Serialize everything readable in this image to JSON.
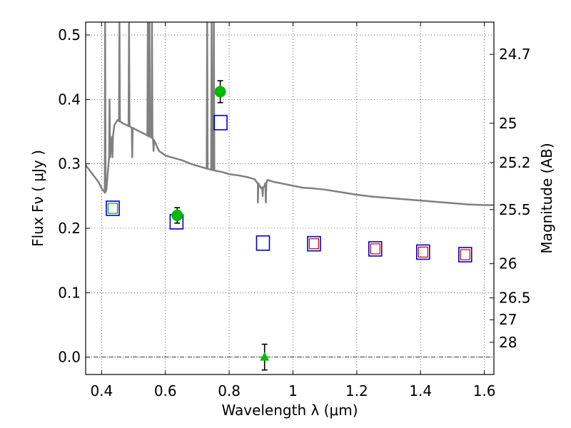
{
  "chart_data": {
    "type": "scatter",
    "title": "",
    "xlabel": "Wavelength  λ (μm)",
    "ylabel_left": "Flux  Fν  ( μJy )",
    "ylabel_right": "Magnitude (AB)",
    "xlim": [
      0.35,
      1.63
    ],
    "ylim": [
      -0.027,
      0.52
    ],
    "grid": true,
    "x_ticks": [
      0.4,
      0.6,
      0.8,
      1.0,
      1.2,
      1.4,
      1.6
    ],
    "x_tick_labels": [
      "0.4",
      "0.6",
      "0.8",
      "1",
      "1.2",
      "1.4",
      "1.6"
    ],
    "y_ticks": [
      0.0,
      0.1,
      0.2,
      0.3,
      0.4,
      0.5
    ],
    "y_tick_labels": [
      "0.0",
      "0.1",
      "0.2",
      "0.3",
      "0.4",
      "0.5"
    ],
    "right_ticks": [
      {
        "flux": 0.47,
        "label": "24.7"
      },
      {
        "flux": 0.363,
        "label": "25"
      },
      {
        "flux": 0.302,
        "label": "25.2"
      },
      {
        "flux": 0.229,
        "label": "25.5"
      },
      {
        "flux": 0.145,
        "label": "26"
      },
      {
        "flux": 0.092,
        "label": "26.5"
      },
      {
        "flux": 0.058,
        "label": "27"
      },
      {
        "flux": 0.023,
        "label": "28"
      }
    ],
    "colors": {
      "spectrum": "#808080",
      "observed": "#00bb00",
      "blue_box": "#0000cc",
      "green_box": "#00aa00",
      "red_box": "#cc0000",
      "error_bar": "#000000",
      "zero_line": "#000000"
    },
    "zero_line_y": 0.0,
    "spectrum": {
      "name": "",
      "baseline": [
        [
          0.35,
          0.298
        ],
        [
          0.37,
          0.285
        ],
        [
          0.39,
          0.272
        ],
        [
          0.4,
          0.262
        ],
        [
          0.41,
          0.255
        ],
        [
          0.415,
          0.26
        ],
        [
          0.42,
          0.29
        ],
        [
          0.43,
          0.33
        ],
        [
          0.44,
          0.36
        ],
        [
          0.45,
          0.368
        ],
        [
          0.46,
          0.365
        ],
        [
          0.47,
          0.362
        ],
        [
          0.48,
          0.36
        ],
        [
          0.5,
          0.355
        ],
        [
          0.52,
          0.35
        ],
        [
          0.54,
          0.345
        ],
        [
          0.56,
          0.34
        ],
        [
          0.58,
          0.32
        ],
        [
          0.6,
          0.313
        ],
        [
          0.62,
          0.31
        ],
        [
          0.65,
          0.306
        ],
        [
          0.68,
          0.3
        ],
        [
          0.7,
          0.297
        ],
        [
          0.72,
          0.294
        ],
        [
          0.75,
          0.29
        ],
        [
          0.78,
          0.287
        ],
        [
          0.8,
          0.284
        ],
        [
          0.83,
          0.282
        ],
        [
          0.86,
          0.279
        ],
        [
          0.88,
          0.276
        ],
        [
          0.89,
          0.27
        ],
        [
          0.9,
          0.262
        ],
        [
          0.91,
          0.265
        ],
        [
          0.92,
          0.275
        ],
        [
          0.94,
          0.272
        ],
        [
          0.96,
          0.27
        ],
        [
          0.98,
          0.268
        ],
        [
          1.0,
          0.266
        ],
        [
          1.03,
          0.263
        ],
        [
          1.06,
          0.262
        ],
        [
          1.1,
          0.26
        ],
        [
          1.15,
          0.256
        ],
        [
          1.2,
          0.252
        ],
        [
          1.25,
          0.249
        ],
        [
          1.3,
          0.247
        ],
        [
          1.35,
          0.245
        ],
        [
          1.4,
          0.243
        ],
        [
          1.45,
          0.241
        ],
        [
          1.5,
          0.239
        ],
        [
          1.55,
          0.237
        ],
        [
          1.6,
          0.236
        ],
        [
          1.63,
          0.236
        ]
      ],
      "spikes": [
        {
          "x": 0.411,
          "y": 0.52
        },
        {
          "x": 0.425,
          "y": 0.4
        },
        {
          "x": 0.434,
          "y": 0.31
        },
        {
          "x": 0.456,
          "y": 0.52
        },
        {
          "x": 0.486,
          "y": 0.52
        },
        {
          "x": 0.496,
          "y": 0.31
        },
        {
          "x": 0.545,
          "y": 0.52
        },
        {
          "x": 0.55,
          "y": 0.52
        },
        {
          "x": 0.558,
          "y": 0.52
        },
        {
          "x": 0.563,
          "y": 0.32
        },
        {
          "x": 0.731,
          "y": 0.52
        },
        {
          "x": 0.745,
          "y": 0.52
        },
        {
          "x": 0.752,
          "y": 0.52
        },
        {
          "x": 0.89,
          "y": 0.24
        },
        {
          "x": 0.905,
          "y": 0.25
        },
        {
          "x": 0.915,
          "y": 0.24
        }
      ]
    },
    "observed_points": [
      {
        "x": 0.637,
        "y": 0.22,
        "yerr": 0.012,
        "marker": "circle"
      },
      {
        "x": 0.772,
        "y": 0.412,
        "yerr": 0.017,
        "marker": "circle"
      },
      {
        "x": 0.911,
        "y": 0.0,
        "yerr": 0.02,
        "marker": "triangle"
      }
    ],
    "model_boxes": [
      {
        "x": 0.435,
        "y": 0.231,
        "outline": "blue_box",
        "inner": "green_box"
      },
      {
        "x": 0.635,
        "y": 0.21,
        "outline": "blue_box",
        "inner": ""
      },
      {
        "x": 0.773,
        "y": 0.364,
        "outline": "blue_box",
        "inner": ""
      },
      {
        "x": 0.906,
        "y": 0.177,
        "outline": "blue_box",
        "inner": ""
      },
      {
        "x": 1.066,
        "y": 0.176,
        "outline": "blue_box",
        "inner": "red_box"
      },
      {
        "x": 1.258,
        "y": 0.168,
        "outline": "blue_box",
        "inner": "red_box"
      },
      {
        "x": 1.408,
        "y": 0.163,
        "outline": "blue_box",
        "inner": "red_box"
      },
      {
        "x": 1.54,
        "y": 0.159,
        "outline": "blue_box",
        "inner": "red_box"
      }
    ]
  }
}
